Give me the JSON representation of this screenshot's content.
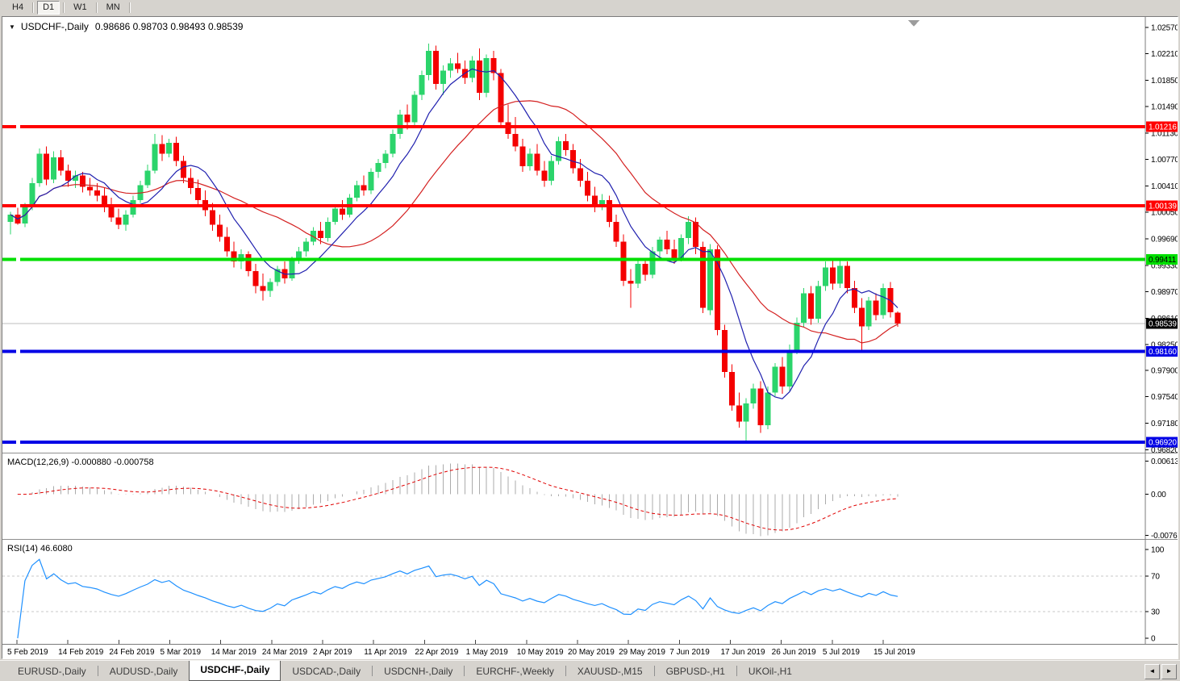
{
  "icons": {
    "dropdown": "▼",
    "tab_scroll_left": "◄",
    "tab_scroll_right": "►"
  },
  "window": {
    "timeframe_buttons": [
      "H4",
      "D1",
      "W1",
      "MN"
    ],
    "active_timeframe": "D1"
  },
  "chart": {
    "title": "USDCHF-,Daily",
    "ohlc": "0.98686 0.98703 0.98493 0.98539"
  },
  "chart_data": {
    "type": "candlestick",
    "symbol": "USDCHF",
    "timeframe": "Daily",
    "last_ohlc": {
      "open": 0.98686,
      "high": 0.98703,
      "low": 0.98493,
      "close": 0.98539
    },
    "bull_color": "#2bd46b",
    "bear_color": "#f40000",
    "price_axis_ticks": [
      "1.02570",
      "1.02210",
      "1.01850",
      "1.01490",
      "1.01130",
      "1.00770",
      "1.00410",
      "1.00050",
      "0.99690",
      "0.99330",
      "0.98970",
      "0.98610",
      "0.98250",
      "0.97900",
      "0.97540",
      "0.97180",
      "0.96820"
    ],
    "x_labels": [
      "5 Feb 2019",
      "14 Feb 2019",
      "24 Feb 2019",
      "5 Mar 2019",
      "14 Mar 2019",
      "24 Mar 2019",
      "2 Apr 2019",
      "11 Apr 2019",
      "22 Apr 2019",
      "1 May 2019",
      "10 May 2019",
      "20 May 2019",
      "29 May 2019",
      "7 Jun 2019",
      "17 Jun 2019",
      "26 Jun 2019",
      "5 Jul 2019",
      "15 Jul 2019"
    ],
    "horizontal_lines": [
      {
        "price": 1.01216,
        "label": "1.01216",
        "color": "#ff0000",
        "text_color": "#ffffff"
      },
      {
        "price": 1.00139,
        "label": "1.00139",
        "color": "#ff0000",
        "text_color": "#ffffff"
      },
      {
        "price": 0.99411,
        "label": "0.99411",
        "color": "#00df00",
        "text_color": "#000000"
      },
      {
        "price": 0.9816,
        "label": "0.98160",
        "color": "#0000e6",
        "text_color": "#ffffff"
      },
      {
        "price": 0.9692,
        "label": "0.96920",
        "color": "#0000e6",
        "text_color": "#ffffff"
      }
    ],
    "current_price": {
      "value": 0.98539,
      "label": "0.98539",
      "tag_color": "#000000",
      "text_color": "#ffffff",
      "line_color": "#bdbdbd"
    },
    "overlays": [
      {
        "name": "ma-fast",
        "type": "sma",
        "period": 8,
        "color": "#2121af"
      },
      {
        "name": "ma-slow",
        "type": "sma",
        "period": 21,
        "color": "#d42121"
      }
    ],
    "indicators": [
      {
        "name": "MACD",
        "label": "MACD(12,26,9) -0.000880 -0.000758",
        "params": [
          12,
          26,
          9
        ],
        "current_values": [
          -0.00088,
          -0.000758
        ],
        "scale_ticks": [
          "0.00613",
          "0.00",
          "-0.007612"
        ],
        "histogram_color": "#ababab",
        "signal_color": "#e00000"
      },
      {
        "name": "RSI",
        "label": "RSI(14) 46.6080",
        "period": 14,
        "current_value": 46.608,
        "scale_ticks": [
          "100",
          "70",
          "30",
          "0"
        ],
        "levels": [
          70,
          30
        ],
        "line_color": "#1e90ff",
        "level_color": "#c8c8c8"
      }
    ],
    "candles_ohlc": [
      [
        0.9992,
        1.0006,
        0.9975,
        1.0002
      ],
      [
        1.0002,
        1.0013,
        0.9988,
        0.999
      ],
      [
        0.999,
        1.0018,
        0.9985,
        1.0012
      ],
      [
        1.0012,
        1.0052,
        1.0008,
        1.0045
      ],
      [
        1.0045,
        1.0092,
        1.004,
        1.0085
      ],
      [
        1.0085,
        1.0095,
        1.0042,
        1.005
      ],
      [
        1.005,
        1.0088,
        1.0045,
        1.008
      ],
      [
        1.008,
        1.009,
        1.0055,
        1.0062
      ],
      [
        1.0062,
        1.007,
        1.004,
        1.0048
      ],
      [
        1.0048,
        1.0062,
        1.0038,
        1.0055
      ],
      [
        1.0055,
        1.006,
        1.0032,
        1.004
      ],
      [
        1.004,
        1.0052,
        1.0028,
        1.0035
      ],
      [
        1.0035,
        1.0045,
        1.002,
        1.0028
      ],
      [
        1.0028,
        1.0038,
        1.0005,
        1.0012
      ],
      [
        1.0012,
        1.0025,
        0.9992,
        0.9998
      ],
      [
        0.9998,
        1.001,
        0.9982,
        0.9988
      ],
      [
        0.9988,
        1.0008,
        0.998,
        1.0002
      ],
      [
        1.0002,
        1.0028,
        0.9998,
        1.0022
      ],
      [
        1.0022,
        1.0048,
        1.0018,
        1.0042
      ],
      [
        1.0042,
        1.007,
        1.0038,
        1.0062
      ],
      [
        1.0062,
        1.0112,
        1.0058,
        1.0098
      ],
      [
        1.0098,
        1.011,
        1.0075,
        1.0085
      ],
      [
        1.0085,
        1.0105,
        1.008,
        1.01
      ],
      [
        1.01,
        1.0108,
        1.0068,
        1.0075
      ],
      [
        1.0075,
        1.0082,
        1.0045,
        1.0052
      ],
      [
        1.0052,
        1.0065,
        1.003,
        1.0038
      ],
      [
        1.0038,
        1.005,
        1.0015,
        1.0022
      ],
      [
        1.0022,
        1.0035,
        1.0,
        1.0008
      ],
      [
        1.0008,
        1.0018,
        0.998,
        0.9988
      ],
      [
        0.9988,
        1.0002,
        0.9965,
        0.9972
      ],
      [
        0.9972,
        0.9985,
        0.9945,
        0.9952
      ],
      [
        0.9952,
        0.9965,
        0.993,
        0.9938
      ],
      [
        0.9938,
        0.9955,
        0.9928,
        0.9948
      ],
      [
        0.9948,
        0.9952,
        0.9918,
        0.9925
      ],
      [
        0.9925,
        0.9935,
        0.9895,
        0.9905
      ],
      [
        0.9905,
        0.9922,
        0.9885,
        0.9898
      ],
      [
        0.9898,
        0.9915,
        0.989,
        0.991
      ],
      [
        0.991,
        0.9932,
        0.9905,
        0.9928
      ],
      [
        0.9928,
        0.9938,
        0.9908,
        0.9915
      ],
      [
        0.9915,
        0.9945,
        0.9912,
        0.994
      ],
      [
        0.994,
        0.9958,
        0.9935,
        0.9952
      ],
      [
        0.9952,
        0.997,
        0.9945,
        0.9965
      ],
      [
        0.9965,
        0.9985,
        0.996,
        0.998
      ],
      [
        0.998,
        0.9992,
        0.9962,
        0.997
      ],
      [
        0.997,
        0.9998,
        0.9965,
        0.9992
      ],
      [
        0.9992,
        1.0015,
        0.9988,
        1.001
      ],
      [
        1.001,
        1.0022,
        0.9995,
        1.0002
      ],
      [
        1.0002,
        1.003,
        0.9998,
        1.0025
      ],
      [
        1.0025,
        1.0048,
        1.002,
        1.0042
      ],
      [
        1.0042,
        1.0055,
        1.0028,
        1.0035
      ],
      [
        1.0035,
        1.0065,
        1.003,
        1.006
      ],
      [
        1.006,
        1.0078,
        1.0052,
        1.0072
      ],
      [
        1.0072,
        1.009,
        1.0065,
        1.0085
      ],
      [
        1.0085,
        1.0118,
        1.008,
        1.0112
      ],
      [
        1.0112,
        1.0145,
        1.0105,
        1.0138
      ],
      [
        1.0138,
        1.0152,
        1.0118,
        1.0128
      ],
      [
        1.0128,
        1.017,
        1.0122,
        1.0165
      ],
      [
        1.0165,
        1.0198,
        1.0158,
        1.0192
      ],
      [
        1.0192,
        1.0235,
        1.0185,
        1.0225
      ],
      [
        1.0225,
        1.0232,
        1.0172,
        1.018
      ],
      [
        1.018,
        1.0205,
        1.0165,
        1.0198
      ],
      [
        1.0198,
        1.0215,
        1.0188,
        1.0208
      ],
      [
        1.0208,
        1.0222,
        1.0195,
        1.02
      ],
      [
        1.02,
        1.0212,
        1.018,
        1.0188
      ],
      [
        1.0188,
        1.0218,
        1.0182,
        1.0212
      ],
      [
        1.0212,
        1.0228,
        1.0158,
        1.0168
      ],
      [
        1.0168,
        1.022,
        1.0162,
        1.0215
      ],
      [
        1.0215,
        1.0225,
        1.0185,
        1.0195
      ],
      [
        1.0195,
        1.02,
        1.012,
        1.0128
      ],
      [
        1.0128,
        1.0152,
        1.0105,
        1.0112
      ],
      [
        1.0112,
        1.0135,
        1.0088,
        1.0095
      ],
      [
        1.0095,
        1.0105,
        1.006,
        1.0068
      ],
      [
        1.0068,
        1.0092,
        1.0062,
        1.0085
      ],
      [
        1.0085,
        1.0098,
        1.0055,
        1.0062
      ],
      [
        1.0062,
        1.0075,
        1.004,
        1.0048
      ],
      [
        1.0048,
        1.0082,
        1.0042,
        1.0075
      ],
      [
        1.0075,
        1.0108,
        1.007,
        1.0102
      ],
      [
        1.0102,
        1.0112,
        1.0082,
        1.009
      ],
      [
        1.009,
        1.0098,
        1.0058,
        1.0065
      ],
      [
        1.0065,
        1.0078,
        1.004,
        1.0048
      ],
      [
        1.0048,
        1.006,
        1.002,
        1.0028
      ],
      [
        1.0028,
        1.004,
        1.0005,
        1.0012
      ],
      [
        1.0012,
        1.003,
        1.0008,
        1.0022
      ],
      [
        1.0022,
        1.0028,
        0.9985,
        0.9992
      ],
      [
        0.9992,
        1.0002,
        0.9958,
        0.9965
      ],
      [
        0.9965,
        0.9975,
        0.9905,
        0.9912
      ],
      [
        0.9912,
        0.9928,
        0.9875,
        0.9908
      ],
      [
        0.9908,
        0.994,
        0.9902,
        0.9935
      ],
      [
        0.9935,
        0.9942,
        0.9912,
        0.992
      ],
      [
        0.992,
        0.9958,
        0.9915,
        0.9952
      ],
      [
        0.9952,
        0.9972,
        0.9945,
        0.9968
      ],
      [
        0.9968,
        0.998,
        0.9948,
        0.9955
      ],
      [
        0.9955,
        0.9968,
        0.9935,
        0.9942
      ],
      [
        0.9942,
        0.9975,
        0.9938,
        0.997
      ],
      [
        0.997,
        1.0,
        0.9962,
        0.9992
      ],
      [
        0.9992,
        0.9998,
        0.9948,
        0.9958
      ],
      [
        0.9958,
        0.9965,
        0.9868,
        0.9875
      ],
      [
        0.9872,
        0.9962,
        0.9865,
        0.9955
      ],
      [
        0.9955,
        0.996,
        0.9838,
        0.9845
      ],
      [
        0.9845,
        0.9852,
        0.978,
        0.9788
      ],
      [
        0.9788,
        0.9798,
        0.9735,
        0.9742
      ],
      [
        0.9742,
        0.976,
        0.9712,
        0.972
      ],
      [
        0.972,
        0.9752,
        0.9693,
        0.9745
      ],
      [
        0.9745,
        0.9772,
        0.9738,
        0.9765
      ],
      [
        0.9765,
        0.9775,
        0.9705,
        0.9715
      ],
      [
        0.9715,
        0.9768,
        0.971,
        0.976
      ],
      [
        0.976,
        0.98,
        0.9755,
        0.9795
      ],
      [
        0.9795,
        0.9808,
        0.9758,
        0.9768
      ],
      [
        0.9768,
        0.9825,
        0.9762,
        0.9818
      ],
      [
        0.9818,
        0.9862,
        0.9812,
        0.9855
      ],
      [
        0.9855,
        0.9902,
        0.9848,
        0.9895
      ],
      [
        0.9895,
        0.9905,
        0.9852,
        0.986
      ],
      [
        0.986,
        0.9912,
        0.9855,
        0.9905
      ],
      [
        0.9905,
        0.9938,
        0.9898,
        0.993
      ],
      [
        0.993,
        0.9942,
        0.99,
        0.9908
      ],
      [
        0.9908,
        0.994,
        0.9902,
        0.9932
      ],
      [
        0.9932,
        0.9938,
        0.9895,
        0.9902
      ],
      [
        0.9902,
        0.9912,
        0.9868,
        0.9875
      ],
      [
        0.9875,
        0.9888,
        0.9818,
        0.985
      ],
      [
        0.985,
        0.989,
        0.9845,
        0.9885
      ],
      [
        0.9885,
        0.9895,
        0.9858,
        0.9865
      ],
      [
        0.9865,
        0.9908,
        0.986,
        0.9902
      ],
      [
        0.9902,
        0.991,
        0.9862,
        0.9869
      ],
      [
        0.98686,
        0.98703,
        0.98493,
        0.98539
      ]
    ]
  },
  "tabs": {
    "items": [
      {
        "label": "EURUSD-,Daily",
        "active": false
      },
      {
        "label": "AUDUSD-,Daily",
        "active": false
      },
      {
        "label": "USDCHF-,Daily",
        "active": true
      },
      {
        "label": "USDCAD-,Daily",
        "active": false
      },
      {
        "label": "USDCNH-,Daily",
        "active": false
      },
      {
        "label": "EURCHF-,Weekly",
        "active": false
      },
      {
        "label": "XAUUSD-,M15",
        "active": false
      },
      {
        "label": "GBPUSD-,H1",
        "active": false
      },
      {
        "label": "UKOil-,H1",
        "active": false
      }
    ]
  }
}
